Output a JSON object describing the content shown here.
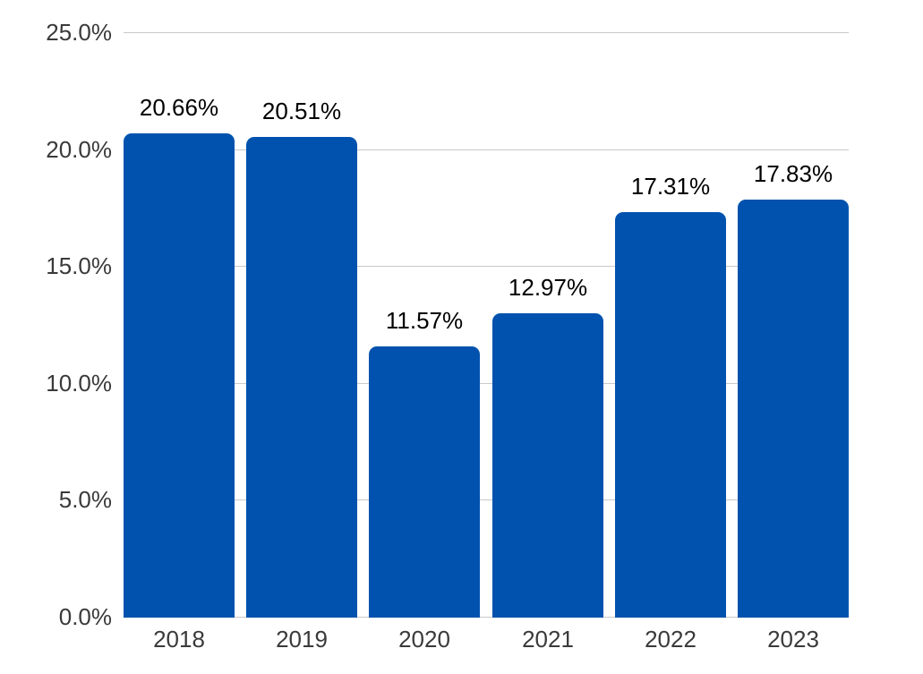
{
  "chart_data": {
    "type": "bar",
    "title": "",
    "xlabel": "",
    "ylabel": "",
    "categories": [
      "2018",
      "2019",
      "2020",
      "2021",
      "2022",
      "2023"
    ],
    "values": [
      20.66,
      20.51,
      11.57,
      12.97,
      17.31,
      17.83
    ],
    "value_labels": [
      "20.66%",
      "20.51%",
      "11.57%",
      "12.97%",
      "17.31%",
      "17.83%"
    ],
    "ylim": [
      0,
      25
    ],
    "ytick_step": 5,
    "ytick_labels": [
      "0.0%",
      "5.0%",
      "10.0%",
      "15.0%",
      "20.0%",
      "25.0%"
    ],
    "grid": true,
    "legend": false,
    "colors": {
      "bar": "#0052AE",
      "gridline": "#C9C9C9",
      "value_label": "#000000",
      "axis_label": "#3A3A3A",
      "background": "#FFFFFF"
    }
  }
}
